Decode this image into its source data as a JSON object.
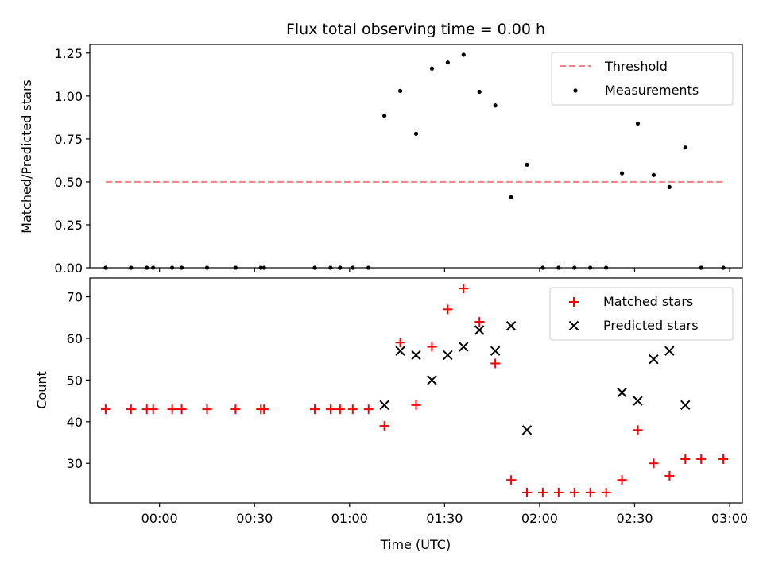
{
  "chart_data": [
    {
      "type": "scatter",
      "title": "Flux total observing time = 0.00 h",
      "xlabel": "",
      "ylabel": "Matched/Predicted stars",
      "xlim": [
        "23:38",
        "03:04"
      ],
      "ylim": [
        0,
        1.3
      ],
      "yticks": [
        0.0,
        0.25,
        0.5,
        0.75,
        1.0,
        1.25
      ],
      "ytick_labels": [
        "0.00",
        "0.25",
        "0.50",
        "0.75",
        "1.00",
        "1.25"
      ],
      "legend_position": "top-right",
      "threshold": {
        "name": "Threshold",
        "value": 0.5,
        "x_start": "23:43",
        "x_end": "02:59",
        "color": "#ff7f7f"
      },
      "series": [
        {
          "name": "Measurements",
          "color": "#000000",
          "marker": "dot",
          "x": [
            "23:43",
            "23:51",
            "23:56",
            "23:58",
            "00:04",
            "00:07",
            "00:15",
            "00:24",
            "00:32",
            "00:33",
            "00:49",
            "00:54",
            "00:57",
            "01:01",
            "01:06",
            "01:11",
            "01:16",
            "01:21",
            "01:26",
            "01:31",
            "01:36",
            "01:41",
            "01:46",
            "01:51",
            "01:56",
            "02:01",
            "02:06",
            "02:11",
            "02:16",
            "02:21",
            "02:26",
            "02:31",
            "02:36",
            "02:41",
            "02:46",
            "02:51",
            "02:58"
          ],
          "y": [
            0,
            0,
            0,
            0,
            0,
            0,
            0,
            0,
            0,
            0,
            0,
            0,
            0,
            0,
            0,
            0.885,
            1.03,
            0.78,
            1.16,
            1.195,
            1.24,
            1.025,
            0.945,
            0.41,
            0.6,
            0,
            0,
            0,
            0,
            0,
            0.55,
            0.84,
            0.54,
            0.47,
            0.7,
            0,
            0
          ]
        }
      ]
    },
    {
      "type": "scatter",
      "title": "",
      "xlabel": "Time (UTC)",
      "ylabel": "Count",
      "xlim": [
        "23:38",
        "03:04"
      ],
      "ylim": [
        20.5,
        74.5
      ],
      "yticks": [
        30,
        40,
        50,
        60,
        70
      ],
      "xticks": [
        "00:00",
        "00:30",
        "01:00",
        "01:30",
        "02:00",
        "02:30",
        "03:00"
      ],
      "legend_position": "top-right",
      "series": [
        {
          "name": "Matched stars",
          "color": "#ff0000",
          "marker": "plus",
          "x": [
            "23:43",
            "23:51",
            "23:56",
            "23:58",
            "00:04",
            "00:07",
            "00:15",
            "00:24",
            "00:32",
            "00:33",
            "00:49",
            "00:54",
            "00:57",
            "01:01",
            "01:06",
            "01:11",
            "01:16",
            "01:21",
            "01:26",
            "01:31",
            "01:36",
            "01:41",
            "01:46",
            "01:51",
            "01:56",
            "02:01",
            "02:06",
            "02:11",
            "02:16",
            "02:21",
            "02:26",
            "02:31",
            "02:36",
            "02:41",
            "02:46",
            "02:51",
            "02:58"
          ],
          "y": [
            43,
            43,
            43,
            43,
            43,
            43,
            43,
            43,
            43,
            43,
            43,
            43,
            43,
            43,
            43,
            39,
            59,
            44,
            58,
            67,
            72,
            64,
            54,
            26,
            23,
            23,
            23,
            23,
            23,
            23,
            26,
            38,
            30,
            27,
            31,
            31,
            31
          ]
        },
        {
          "name": "Predicted stars",
          "color": "#000000",
          "marker": "x",
          "x": [
            "01:11",
            "01:16",
            "01:21",
            "01:26",
            "01:31",
            "01:36",
            "01:41",
            "01:46",
            "01:51",
            "01:56",
            "02:26",
            "02:31",
            "02:36",
            "02:41",
            "02:46"
          ],
          "y": [
            44,
            57,
            56,
            50,
            56,
            58,
            62,
            57,
            63,
            38,
            47,
            45,
            55,
            57,
            44
          ]
        }
      ]
    }
  ]
}
